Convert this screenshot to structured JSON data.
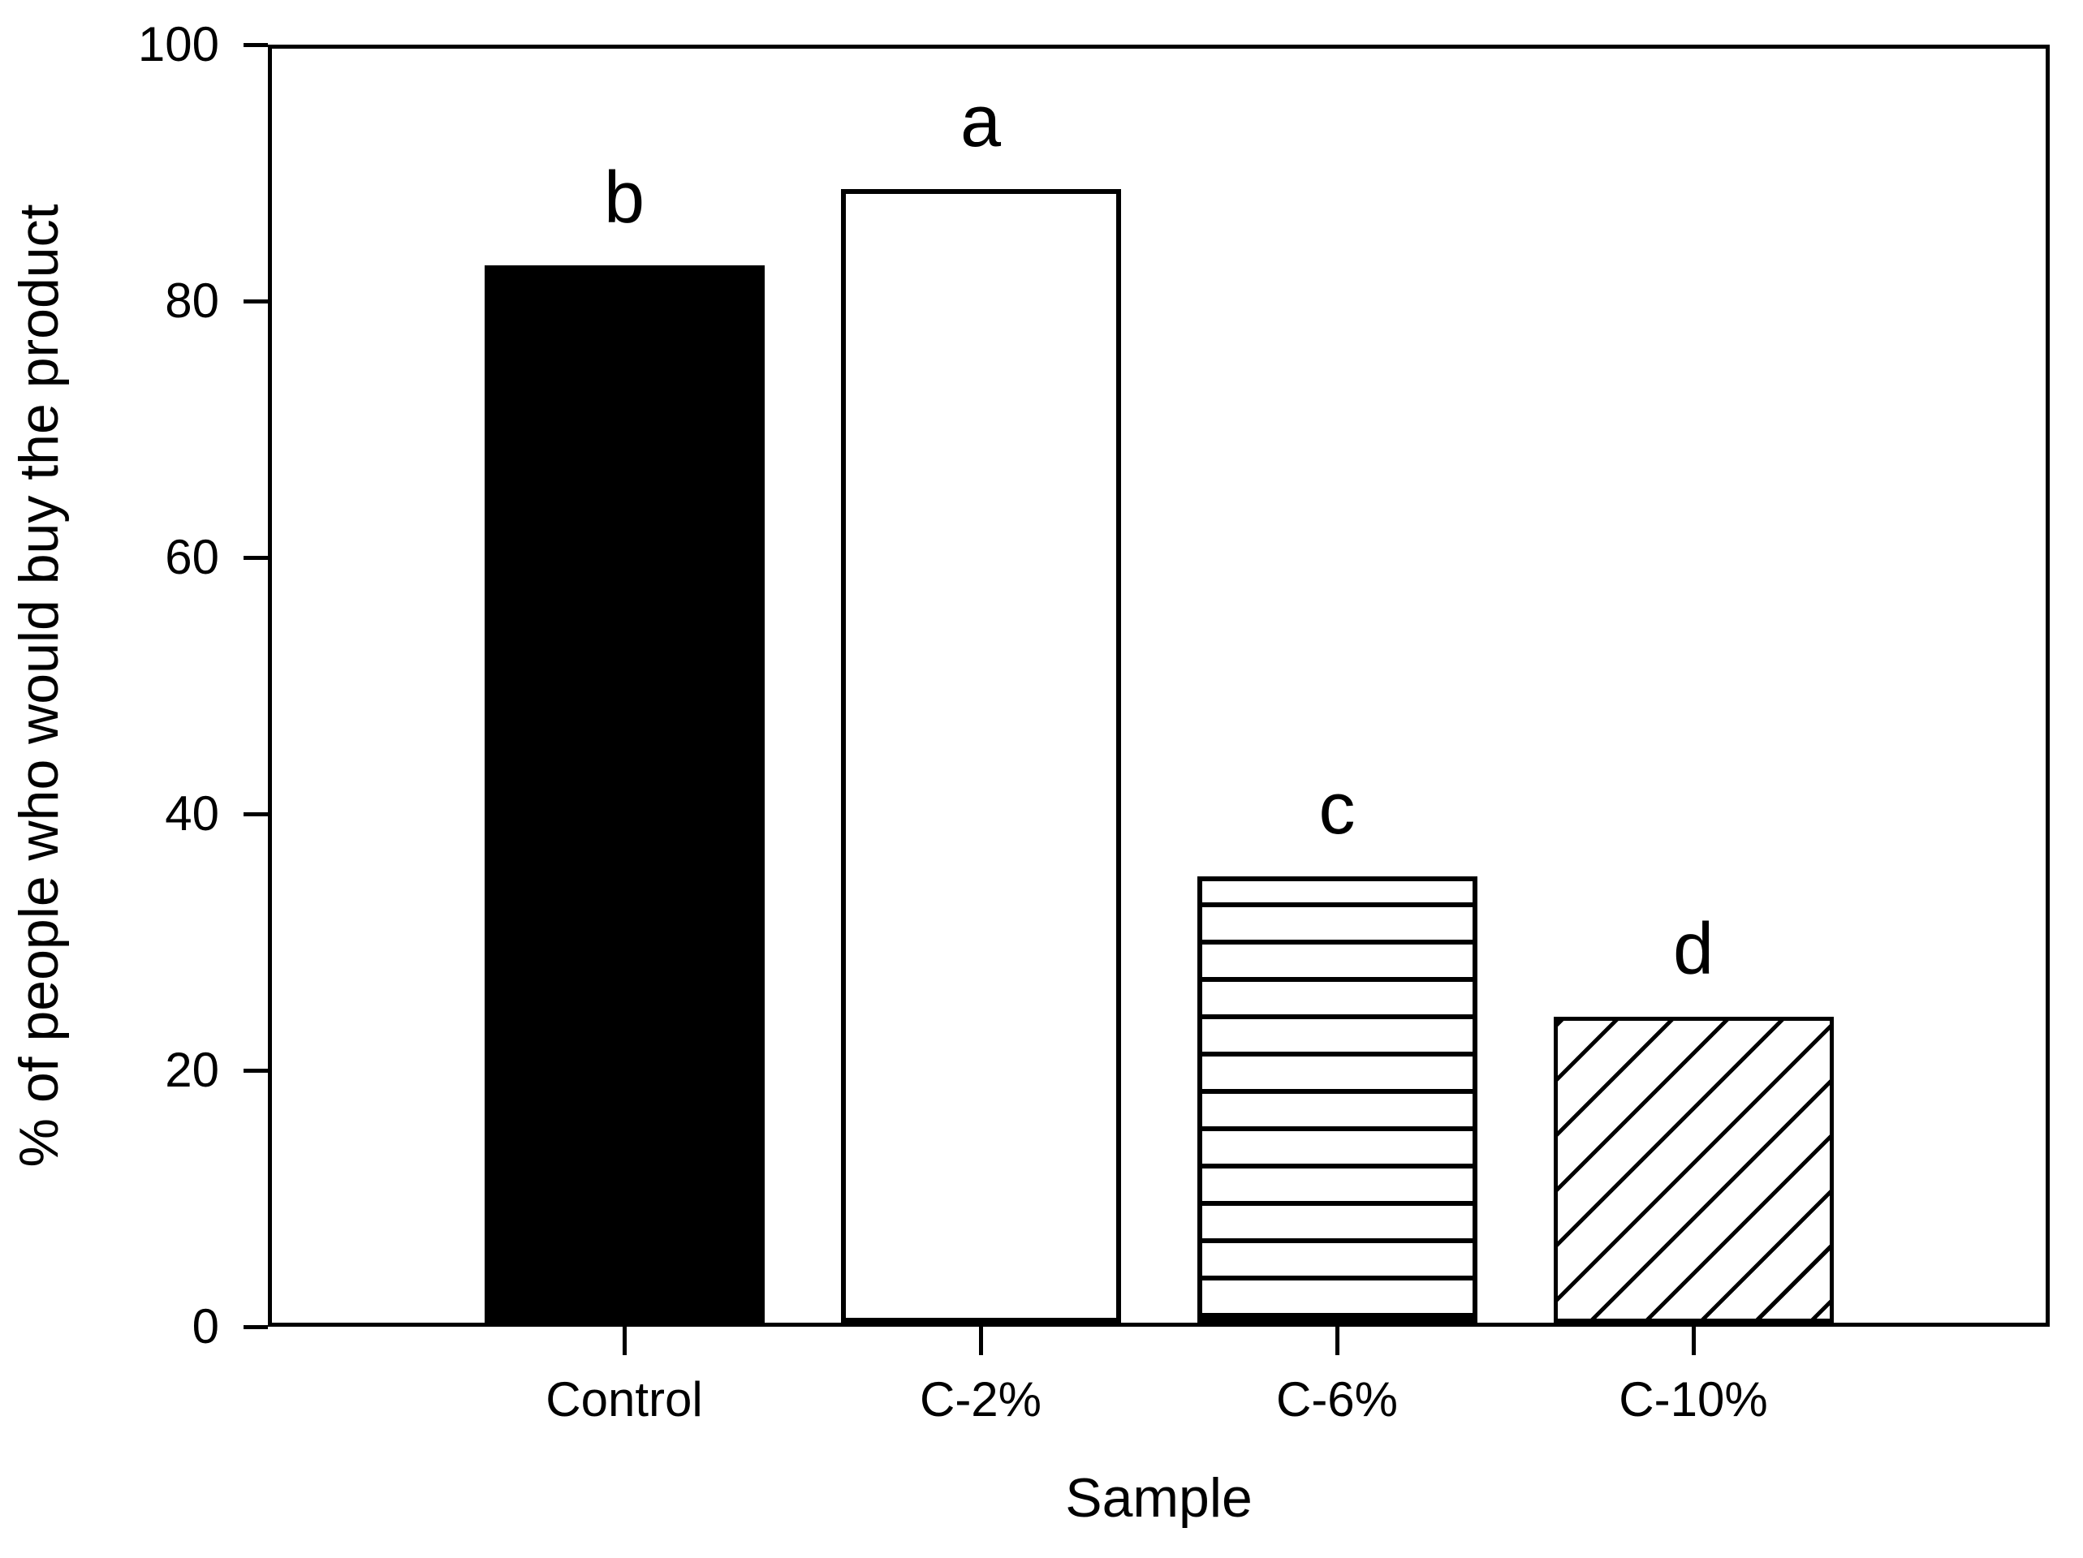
{
  "figure": {
    "background": "#ffffff",
    "foreground": "#000000"
  },
  "chart_data": {
    "type": "bar",
    "title": "",
    "xlabel": "Sample",
    "ylabel": "% of people who would buy the product",
    "categories": [
      "Control",
      "C-2%",
      "C-6%",
      "C-10%"
    ],
    "values": [
      83,
      89,
      35,
      24
    ],
    "bar_labels": [
      "b",
      "a",
      "c",
      "d"
    ],
    "bar_styles": [
      "solid-black",
      "open-white",
      "horizontal-hatch",
      "diagonal-hatch"
    ],
    "ylim": [
      0,
      100
    ],
    "yticks": [
      0,
      20,
      40,
      60,
      80,
      100
    ],
    "grid": "off",
    "legend": "none",
    "frame": "full-box",
    "colors": {
      "bar_line": "#000000",
      "background": "#ffffff"
    }
  }
}
